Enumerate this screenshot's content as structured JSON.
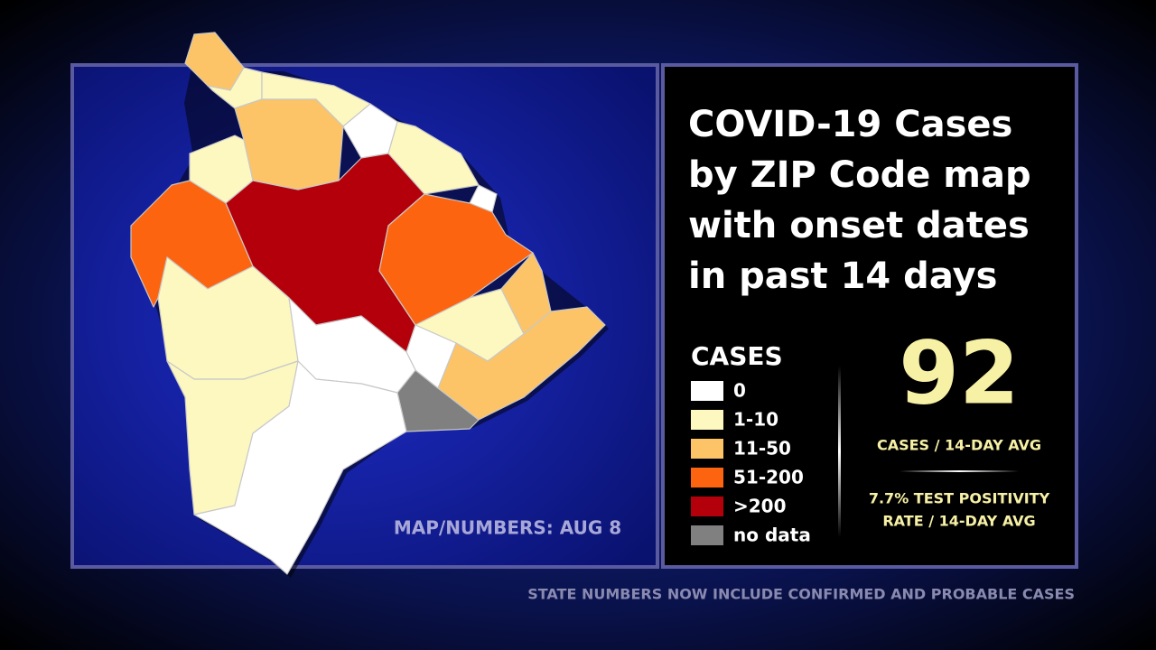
{
  "title_lines": [
    "COVID-19 Cases",
    "by ZIP Code map",
    "with onset dates",
    "in past 14 days"
  ],
  "legend": {
    "title": "CASES",
    "items": [
      {
        "label": "0",
        "color": "#ffffff"
      },
      {
        "label": "1-10",
        "color": "#fdf8c0"
      },
      {
        "label": "11-50",
        "color": "#fcc466"
      },
      {
        "label": "51-200",
        "color": "#fd6410"
      },
      {
        "label": ">200",
        "color": "#b4000a"
      },
      {
        "label": "no data",
        "color": "#808080"
      }
    ]
  },
  "cases_avg": {
    "value": 92,
    "label": "CASES / 14-DAY AVG"
  },
  "positivity_lines": [
    "7.7% TEST POSITIVITY",
    "RATE / 14-DAY AVG"
  ],
  "map_date": "MAP/NUMBERS: AUG 8",
  "footer": "STATE NUMBERS NOW INCLUDE CONFIRMED AND PROBABLE CASES"
}
